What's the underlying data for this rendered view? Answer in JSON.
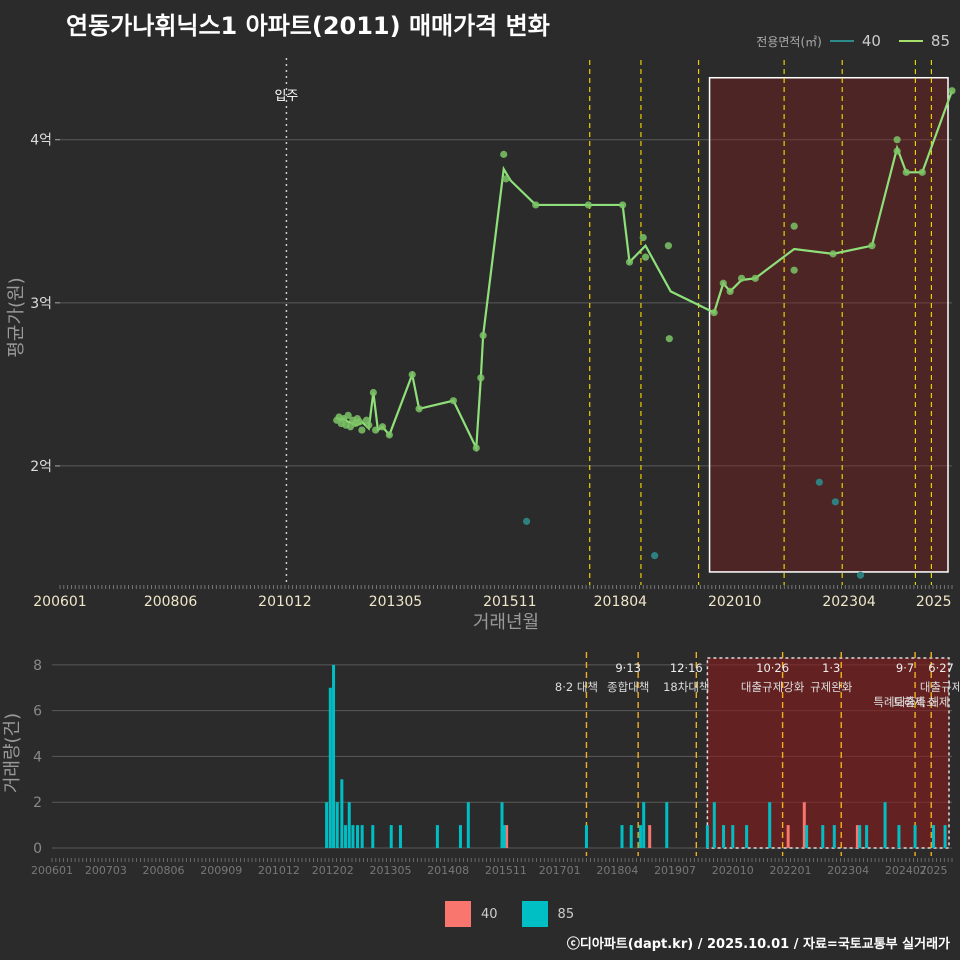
{
  "title": "연동가나휘닉스1 아파트(2011) 매매가격 변화",
  "legend": {
    "label": "전용면적(㎡)",
    "items": [
      {
        "name": "40",
        "color": "#2e8b8b"
      },
      {
        "name": "85",
        "color": "#a6e06a"
      }
    ]
  },
  "footer": "ⓒ디아파트(dapt.kr) / 2025.10.01 / 자료=국토교통부 실거래가",
  "colors": {
    "line85": "#8fe07a",
    "point85": "#7cc466",
    "point40": "#2e7f80",
    "bar40": "#f8766d",
    "bar85": "#00bfc4",
    "policy": "#e8d000",
    "policyBar": "#f0b020",
    "region": "#8b1a1a",
    "grid": "#5a5a5a"
  },
  "chart_data": [
    {
      "type": "line",
      "title": "연동가나휘닉스1 아파트(2011) 매매가격 변화",
      "xlabel": "거래년월",
      "ylabel": "평균가(원)",
      "x_ticks": [
        "200601",
        "200806",
        "201012",
        "201305",
        "201511",
        "201804",
        "202010",
        "202304",
        "2025"
      ],
      "y_ticks": [
        {
          "value": 2.0,
          "label": "2억"
        },
        {
          "value": 3.0,
          "label": "3억"
        },
        {
          "value": 4.0,
          "label": "4억"
        }
      ],
      "xlim": [
        2006.0,
        2025.5
      ],
      "ylim": [
        1.27,
        4.55
      ],
      "unit_note": "x = fractional year, y = 억원",
      "move_in": {
        "x": 2010.95,
        "label": "입주"
      },
      "policy_lines": [
        2017.58,
        2018.7,
        2019.96,
        2021.83,
        2023.1,
        2024.7,
        2025.05
      ],
      "highlight_region": {
        "x_start": 2020.2,
        "x_end": 2025.5,
        "y_start": 1.35,
        "y_end": 4.38
      },
      "series": [
        {
          "name": "85",
          "line": [
            [
              2012.1,
              2.28
            ],
            [
              2012.2,
              2.29
            ],
            [
              2012.3,
              2.27
            ],
            [
              2012.4,
              2.26
            ],
            [
              2012.5,
              2.25
            ],
            [
              2012.6,
              2.27
            ],
            [
              2012.75,
              2.23
            ],
            [
              2012.85,
              2.45
            ],
            [
              2012.95,
              2.22
            ],
            [
              2013.05,
              2.24
            ],
            [
              2013.2,
              2.19
            ],
            [
              2013.7,
              2.56
            ],
            [
              2013.85,
              2.35
            ],
            [
              2014.6,
              2.4
            ],
            [
              2015.1,
              2.11
            ],
            [
              2015.2,
              2.54
            ],
            [
              2015.25,
              2.8
            ],
            [
              2015.7,
              3.82
            ],
            [
              2015.85,
              3.75
            ],
            [
              2016.4,
              3.6
            ],
            [
              2017.55,
              3.6
            ],
            [
              2018.3,
              3.6
            ],
            [
              2018.45,
              3.25
            ],
            [
              2018.8,
              3.35
            ],
            [
              2019.35,
              3.07
            ],
            [
              2020.3,
              2.94
            ],
            [
              2020.5,
              3.12
            ],
            [
              2020.65,
              3.07
            ],
            [
              2020.9,
              3.14
            ],
            [
              2021.2,
              3.15
            ],
            [
              2022.05,
              3.33
            ],
            [
              2022.9,
              3.3
            ],
            [
              2023.75,
              3.35
            ],
            [
              2024.3,
              3.95
            ],
            [
              2024.5,
              3.8
            ],
            [
              2024.85,
              3.8
            ],
            [
              2025.5,
              4.3
            ]
          ],
          "points": [
            [
              2012.05,
              2.28
            ],
            [
              2012.1,
              2.3
            ],
            [
              2012.15,
              2.26
            ],
            [
              2012.2,
              2.29
            ],
            [
              2012.25,
              2.25
            ],
            [
              2012.3,
              2.31
            ],
            [
              2012.35,
              2.24
            ],
            [
              2012.4,
              2.28
            ],
            [
              2012.45,
              2.26
            ],
            [
              2012.5,
              2.29
            ],
            [
              2012.55,
              2.27
            ],
            [
              2012.6,
              2.22
            ],
            [
              2012.7,
              2.28
            ],
            [
              2012.75,
              2.25
            ],
            [
              2012.85,
              2.45
            ],
            [
              2012.9,
              2.22
            ],
            [
              2013.05,
              2.24
            ],
            [
              2013.2,
              2.19
            ],
            [
              2013.7,
              2.56
            ],
            [
              2013.85,
              2.35
            ],
            [
              2014.6,
              2.4
            ],
            [
              2015.1,
              2.11
            ],
            [
              2015.2,
              2.54
            ],
            [
              2015.25,
              2.8
            ],
            [
              2015.7,
              3.91
            ],
            [
              2015.75,
              3.76
            ],
            [
              2016.4,
              3.6
            ],
            [
              2017.55,
              3.6
            ],
            [
              2018.3,
              3.6
            ],
            [
              2018.45,
              3.25
            ],
            [
              2018.75,
              3.4
            ],
            [
              2018.8,
              3.28
            ],
            [
              2019.3,
              3.35
            ],
            [
              2019.32,
              2.78
            ],
            [
              2020.3,
              2.94
            ],
            [
              2020.5,
              3.12
            ],
            [
              2020.65,
              3.07
            ],
            [
              2020.9,
              3.15
            ],
            [
              2021.2,
              3.15
            ],
            [
              2022.05,
              3.47
            ],
            [
              2022.05,
              3.2
            ],
            [
              2022.9,
              3.3
            ],
            [
              2023.75,
              3.35
            ],
            [
              2024.3,
              4.0
            ],
            [
              2024.3,
              3.93
            ],
            [
              2024.5,
              3.8
            ],
            [
              2024.85,
              3.8
            ],
            [
              2025.5,
              4.3
            ]
          ]
        },
        {
          "name": "40",
          "points": [
            [
              2016.2,
              1.66
            ],
            [
              2019.0,
              1.45
            ],
            [
              2022.6,
              1.9
            ],
            [
              2022.95,
              1.78
            ],
            [
              2023.5,
              1.33
            ]
          ]
        }
      ]
    },
    {
      "type": "bar",
      "xlabel": "",
      "ylabel": "거래량(건)",
      "x_ticks": [
        "200601",
        "200703",
        "200806",
        "200909",
        "201012",
        "201202",
        "201305",
        "201408",
        "201511",
        "201701",
        "201804",
        "201907",
        "202010",
        "202201",
        "202304",
        "202407",
        "2025"
      ],
      "y_ticks": [
        0,
        2,
        4,
        6,
        8
      ],
      "xlim": [
        2006.0,
        2025.5
      ],
      "ylim": [
        0,
        8.3
      ],
      "policy_lines": [
        2017.58,
        2018.7,
        2019.96,
        2021.83,
        2023.1,
        2024.7,
        2025.05
      ],
      "policy_labels": [
        {
          "x": 2017.58,
          "date": "",
          "name": "8·2 대책",
          "row": 1
        },
        {
          "x": 2018.7,
          "date": "9·13",
          "name": "종합대책",
          "row": 1
        },
        {
          "x": 2019.96,
          "date": "12·16",
          "name": "18차대책",
          "row": 1
        },
        {
          "x": 2021.83,
          "date": "10·26",
          "name": "대출규제강화",
          "row": 1
        },
        {
          "x": 2023.1,
          "date": "1·3",
          "name": "규제완화",
          "row": 1
        },
        {
          "x": 2024.7,
          "date": "9·7",
          "name": "특례대출축소",
          "row": 2
        },
        {
          "x": 2025.05,
          "date": "",
          "name": "토허제 해제",
          "row": 2
        },
        {
          "x": 2025.48,
          "date": "6·27",
          "name": "대출규제",
          "row": 1
        }
      ],
      "highlight_region": {
        "x_start": 2020.2,
        "x_end": 2025.5
      },
      "series": [
        {
          "name": "40",
          "bars": [
            [
              2015.85,
              1
            ],
            [
              2018.95,
              1
            ],
            [
              2021.95,
              1
            ],
            [
              2022.3,
              2
            ],
            [
              2023.45,
              1
            ]
          ]
        },
        {
          "name": "85",
          "bars": [
            [
              2011.95,
              2
            ],
            [
              2012.03,
              7
            ],
            [
              2012.1,
              8
            ],
            [
              2012.18,
              2
            ],
            [
              2012.28,
              3
            ],
            [
              2012.36,
              1
            ],
            [
              2012.44,
              2
            ],
            [
              2012.52,
              1
            ],
            [
              2012.62,
              1
            ],
            [
              2012.72,
              1
            ],
            [
              2012.95,
              1
            ],
            [
              2013.35,
              1
            ],
            [
              2013.55,
              1
            ],
            [
              2014.35,
              1
            ],
            [
              2014.85,
              1
            ],
            [
              2015.02,
              2
            ],
            [
              2015.75,
              2
            ],
            [
              2015.8,
              1
            ],
            [
              2017.58,
              1
            ],
            [
              2018.35,
              1
            ],
            [
              2018.55,
              1
            ],
            [
              2018.75,
              1
            ],
            [
              2018.82,
              2
            ],
            [
              2019.32,
              2
            ],
            [
              2020.2,
              1
            ],
            [
              2020.35,
              2
            ],
            [
              2020.55,
              1
            ],
            [
              2020.75,
              1
            ],
            [
              2021.05,
              1
            ],
            [
              2021.55,
              2
            ],
            [
              2022.35,
              1
            ],
            [
              2022.7,
              1
            ],
            [
              2022.95,
              1
            ],
            [
              2023.5,
              1
            ],
            [
              2023.65,
              1
            ],
            [
              2024.05,
              2
            ],
            [
              2024.35,
              1
            ],
            [
              2024.7,
              1
            ],
            [
              2025.1,
              1
            ],
            [
              2025.35,
              1
            ]
          ]
        }
      ]
    }
  ]
}
